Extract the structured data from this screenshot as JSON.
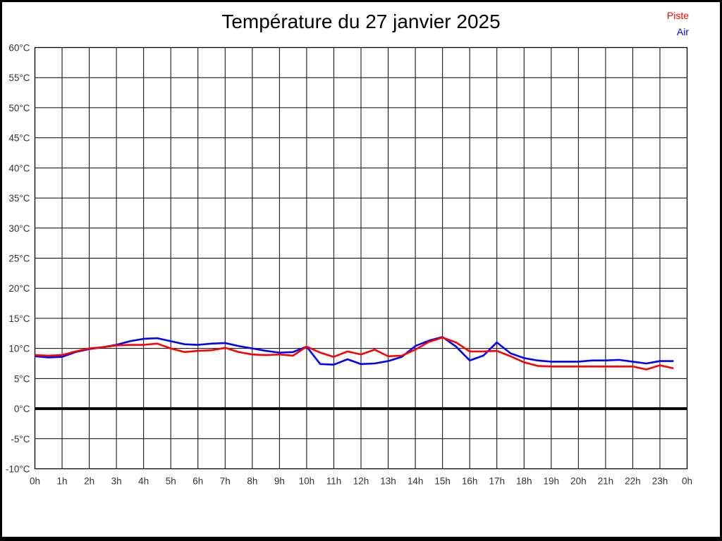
{
  "title": "Température du 27 janvier 2025",
  "legend": [
    {
      "label": "Piste",
      "color": "#ff0000"
    },
    {
      "label": "Air",
      "color": "#0000ff"
    }
  ],
  "chart_data": {
    "type": "line",
    "title": "Température du 27 janvier 2025",
    "xlabel": "",
    "ylabel": "",
    "x_unit": "hours",
    "y_unit": "°C",
    "xlim": [
      0,
      24
    ],
    "ylim": [
      -10,
      60
    ],
    "grid": true,
    "zero_line": true,
    "legend_position": "top-right",
    "x_ticks": [
      "0h",
      "1h",
      "2h",
      "3h",
      "4h",
      "5h",
      "6h",
      "7h",
      "8h",
      "9h",
      "10h",
      "11h",
      "12h",
      "13h",
      "14h",
      "15h",
      "16h",
      "17h",
      "18h",
      "19h",
      "20h",
      "21h",
      "22h",
      "23h",
      "0h"
    ],
    "y_ticks": [
      "60°C",
      "55°C",
      "50°C",
      "45°C",
      "40°C",
      "35°C",
      "30°C",
      "25°C",
      "20°C",
      "15°C",
      "10°C",
      "5°C",
      "0°C",
      "-5°C",
      "-10°C"
    ],
    "x": [
      0,
      0.5,
      1,
      1.5,
      2,
      2.5,
      3,
      3.5,
      4,
      4.5,
      5,
      5.5,
      6,
      6.5,
      7,
      7.5,
      8,
      8.5,
      9,
      9.5,
      10,
      10.5,
      11,
      11.5,
      12,
      12.5,
      13,
      13.5,
      14,
      14.5,
      15,
      15.5,
      16,
      16.5,
      17,
      17.5,
      18,
      18.5,
      19,
      19.5,
      20,
      20.5,
      21,
      21.5,
      22,
      22.5,
      23,
      23.5
    ],
    "series": [
      {
        "name": "Piste",
        "color": "#ff0000",
        "values": [
          8.9,
          8.8,
          8.9,
          9.5,
          10.0,
          10.2,
          10.5,
          10.6,
          10.6,
          10.8,
          10.0,
          9.4,
          9.6,
          9.7,
          10.1,
          9.4,
          9.0,
          8.9,
          9.0,
          8.8,
          10.3,
          9.3,
          8.6,
          9.5,
          9.0,
          9.8,
          8.7,
          8.8,
          9.8,
          11.1,
          11.8,
          11.0,
          9.5,
          9.5,
          9.6,
          8.7,
          7.7,
          7.1,
          7.0,
          7.0,
          7.0,
          7.0,
          7.0,
          7.0,
          7.0,
          6.5,
          7.2,
          6.7
        ]
      },
      {
        "name": "Air",
        "color": "#0000ff",
        "values": [
          8.7,
          8.5,
          8.6,
          9.4,
          9.9,
          10.2,
          10.6,
          11.2,
          11.6,
          11.7,
          11.2,
          10.7,
          10.6,
          10.8,
          10.9,
          10.4,
          10.0,
          9.6,
          9.3,
          9.4,
          10.3,
          7.4,
          7.3,
          8.2,
          7.4,
          7.5,
          7.9,
          8.6,
          10.4,
          11.3,
          11.9,
          10.3,
          8.0,
          8.8,
          11.0,
          9.2,
          8.4,
          8.0,
          7.8,
          7.8,
          7.8,
          8.0,
          8.0,
          8.1,
          7.8,
          7.5,
          7.9,
          7.9
        ]
      }
    ]
  }
}
